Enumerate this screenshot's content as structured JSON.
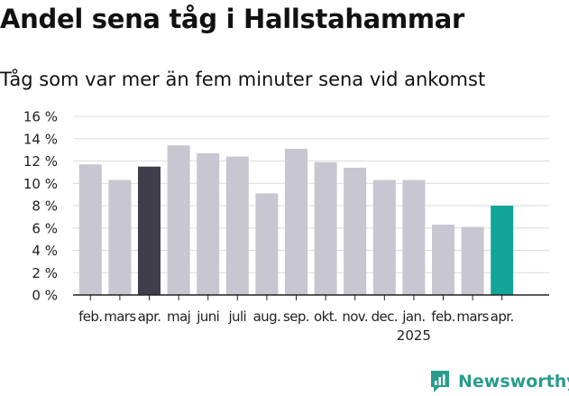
{
  "title": "Andel sena tåg i Hallstahammar",
  "subtitle": "Tåg som var mer än fem minuter sena vid ankomst",
  "brand": {
    "name": "Newsworthy",
    "icon": "newsworthy-logo-icon",
    "color": "#2a9c8c"
  },
  "chart_data": {
    "type": "bar",
    "title": "Andel sena tåg i Hallstahammar",
    "subtitle": "Tåg som var mer än fem minuter sena vid ankomst",
    "xlabel": "",
    "ylabel": "",
    "categories": [
      "feb.",
      "mars",
      "apr.",
      "maj",
      "juni",
      "juli",
      "aug.",
      "sep.",
      "okt.",
      "nov.",
      "dec.",
      "jan.",
      "feb.",
      "mars",
      "apr."
    ],
    "year_labels": [
      {
        "index": 11,
        "label": "2025"
      }
    ],
    "values": [
      11.7,
      10.3,
      11.5,
      13.4,
      12.7,
      12.4,
      9.1,
      13.1,
      11.9,
      11.4,
      10.3,
      10.3,
      6.3,
      6.1,
      8.0
    ],
    "bar_colors": [
      "#c8c6d1",
      "#c8c6d1",
      "#403e4a",
      "#c8c6d1",
      "#c8c6d1",
      "#c8c6d1",
      "#c8c6d1",
      "#c8c6d1",
      "#c8c6d1",
      "#c8c6d1",
      "#c8c6d1",
      "#c8c6d1",
      "#c8c6d1",
      "#c8c6d1",
      "#13a59a"
    ],
    "yticks": [
      "0 %",
      "2 %",
      "4 %",
      "6 %",
      "8 %",
      "10 %",
      "12 %",
      "14 %",
      "16 %"
    ],
    "ylim": [
      0,
      16
    ],
    "grid": true,
    "legend": "none"
  }
}
